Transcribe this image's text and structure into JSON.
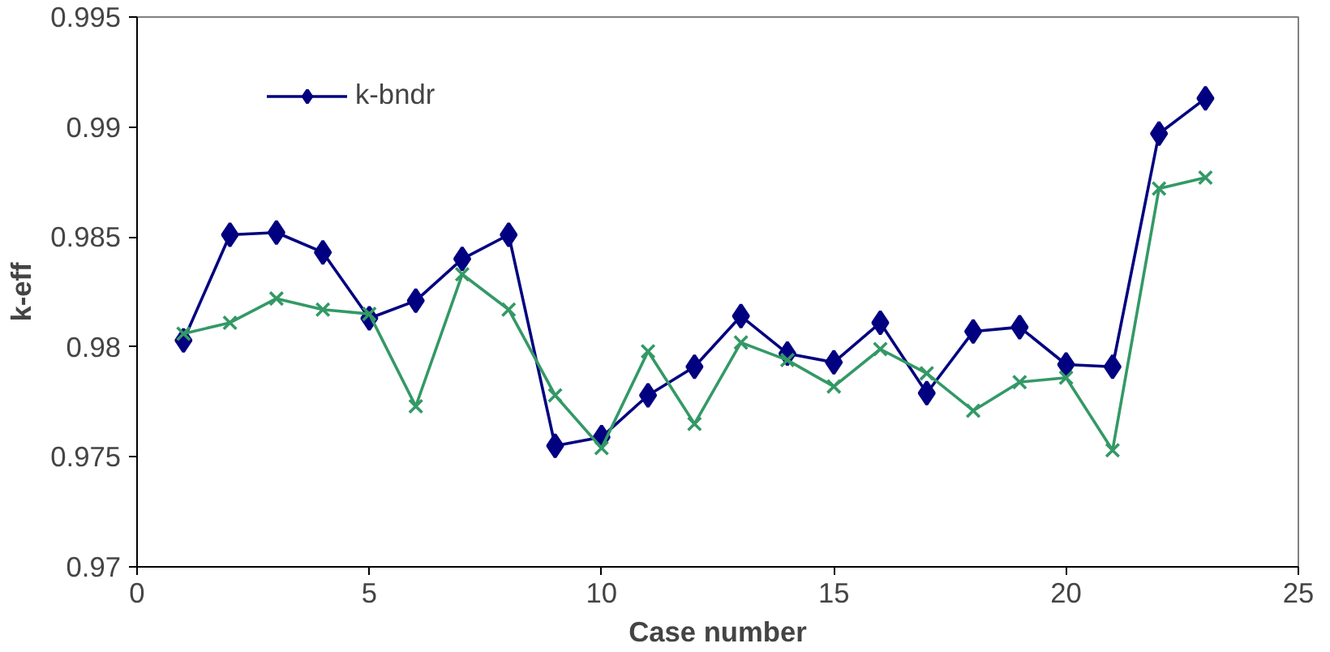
{
  "chart_data": {
    "type": "line",
    "xlabel": "Case number",
    "ylabel": "k-eff",
    "x": [
      1,
      2,
      3,
      4,
      5,
      6,
      7,
      8,
      9,
      10,
      11,
      12,
      13,
      14,
      15,
      16,
      17,
      18,
      19,
      20,
      21,
      22,
      23
    ],
    "series": [
      {
        "name": "k-bndr",
        "color": "#000080",
        "marker": "diamond",
        "values": [
          0.9803,
          0.9851,
          0.9852,
          0.9843,
          0.9813,
          0.9821,
          0.984,
          0.9851,
          0.9755,
          0.9759,
          0.9778,
          0.9791,
          0.9814,
          0.9797,
          0.9793,
          0.9811,
          0.9779,
          0.9807,
          0.9809,
          0.9792,
          0.9791,
          0.9897,
          0.9913
        ]
      },
      {
        "color": "#339966",
        "marker": "cross",
        "values": [
          0.9806,
          0.9811,
          0.9822,
          0.9817,
          0.9815,
          0.9773,
          0.9833,
          0.9817,
          0.9778,
          0.9754,
          0.9798,
          0.9765,
          0.9802,
          0.9794,
          0.9782,
          0.9799,
          0.9788,
          0.9771,
          0.9784,
          0.9786,
          0.9753,
          0.9872,
          0.9877
        ]
      }
    ],
    "xlim": [
      0,
      25
    ],
    "xticks": [
      0,
      5,
      10,
      15,
      20,
      25
    ],
    "ylim": [
      0.97,
      0.995
    ],
    "yticks": [
      0.97,
      0.975,
      0.98,
      0.985,
      0.99,
      0.995
    ],
    "grid": false,
    "legend": "top",
    "line_style": "solid"
  }
}
